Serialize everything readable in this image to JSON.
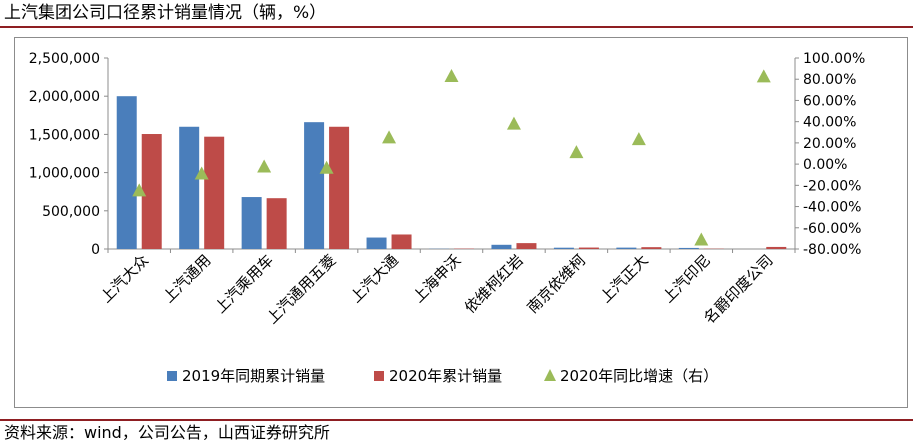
{
  "header": {
    "title": "上汽集团公司口径累计销量情况（辆，%）"
  },
  "footer": {
    "source": "资料来源：wind，公司公告，山西证券研究所"
  },
  "colors": {
    "series_2019": "#4a7ebb",
    "series_2020": "#be4b48",
    "series_growth": "#9bbb59",
    "title_rule": "#8e1e22"
  },
  "chart_data": {
    "type": "bar",
    "title": "上汽集团公司口径累计销量情况（辆，%）",
    "categories": [
      "上汽大众",
      "上汽通用",
      "上汽乘用车",
      "上汽通用五菱",
      "上汽大通",
      "上海申沃",
      "依维柯红岩",
      "南京依维柯",
      "上汽正大",
      "上汽印尼",
      "名爵印度公司"
    ],
    "series": [
      {
        "name": "2019年同期累计销量",
        "type": "bar",
        "axis": "left",
        "values": [
          2000000,
          1600000,
          680000,
          1660000,
          150000,
          3000,
          55000,
          17000,
          18000,
          14000,
          0
        ]
      },
      {
        "name": "2020年累计销量",
        "type": "bar",
        "axis": "left",
        "values": [
          1505000,
          1470000,
          665000,
          1600000,
          190000,
          5000,
          77000,
          19000,
          24000,
          4000,
          27000
        ]
      },
      {
        "name": "2020年同比增速（右）",
        "type": "scatter",
        "axis": "right",
        "marker": "triangle",
        "values": [
          -24.7,
          -8.8,
          -2.2,
          -3.4,
          25.2,
          83.0,
          38.1,
          11.3,
          23.6,
          -71.0,
          82.7
        ]
      }
    ],
    "y_left": {
      "min": 0,
      "max": 2500000,
      "step": 500000,
      "ticks": [
        "0",
        "500,000",
        "1,000,000",
        "1,500,000",
        "2,000,000",
        "2,500,000"
      ]
    },
    "y_right": {
      "min": -80,
      "max": 100,
      "step": 20,
      "ticks": [
        "-80.00%",
        "-60.00%",
        "-40.00%",
        "-20.00%",
        "0.00%",
        "20.00%",
        "40.00%",
        "60.00%",
        "80.00%",
        "100.00%"
      ]
    },
    "grid": false,
    "legend_position": "bottom"
  }
}
